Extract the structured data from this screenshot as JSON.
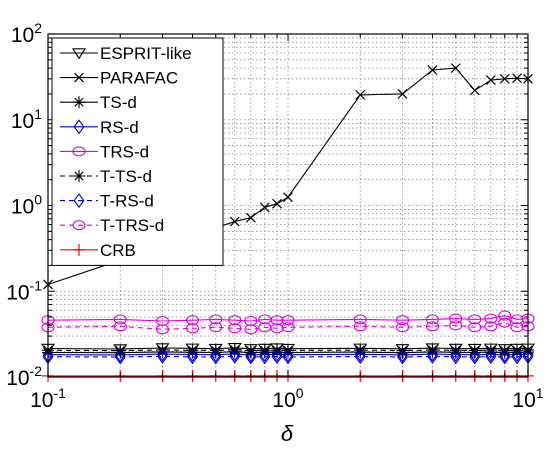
{
  "chart_data": {
    "type": "line",
    "x_scale": "log",
    "y_scale": "log",
    "xlim": [
      0.1,
      10
    ],
    "ylim": [
      0.01,
      100
    ],
    "xlabel": "δ",
    "ylabel": "",
    "grid": true,
    "legend_position": "top-left",
    "x_ticks": [
      {
        "value": 0.1,
        "base": "10",
        "exp": "-1"
      },
      {
        "value": 1,
        "base": "10",
        "exp": "0"
      },
      {
        "value": 10,
        "base": "10",
        "exp": "1"
      }
    ],
    "y_ticks": [
      {
        "value": 0.01,
        "base": "10",
        "exp": "-2"
      },
      {
        "value": 0.1,
        "base": "10",
        "exp": "-1"
      },
      {
        "value": 1,
        "base": "10",
        "exp": "0"
      },
      {
        "value": 10,
        "base": "10",
        "exp": "1"
      },
      {
        "value": 100,
        "base": "10",
        "exp": "2"
      }
    ],
    "x": [
      0.1,
      0.2,
      0.3,
      0.4,
      0.5,
      0.6,
      0.7,
      0.8,
      0.9,
      1,
      2,
      3,
      4,
      5,
      6,
      7,
      8,
      9,
      10
    ],
    "series": [
      {
        "name": "ESPRIT-like",
        "color": "#000000",
        "marker": "triangle-down",
        "dash": "",
        "values": [
          0.0215,
          0.0212,
          0.0218,
          0.0216,
          0.0214,
          0.0219,
          0.0213,
          0.0215,
          0.0217,
          0.0214,
          0.0216,
          0.0213,
          0.0217,
          0.0215,
          0.0214,
          0.0216,
          0.0213,
          0.0215,
          0.0216
        ]
      },
      {
        "name": "PARAFAC",
        "color": "#000000",
        "marker": "x",
        "dash": "",
        "values": [
          0.12,
          0.23,
          0.33,
          0.44,
          0.55,
          0.65,
          0.72,
          0.95,
          1.05,
          1.25,
          19.5,
          20.0,
          38.0,
          40.0,
          22.0,
          29.0,
          30.0,
          30.5,
          30.0
        ]
      },
      {
        "name": "TS-d",
        "color": "#000000",
        "marker": "star",
        "dash": "",
        "values": [
          0.0193,
          0.0192,
          0.0196,
          0.0194,
          0.0193,
          0.0197,
          0.0192,
          0.0194,
          0.0195,
          0.0193,
          0.0195,
          0.0192,
          0.0196,
          0.0194,
          0.0193,
          0.0195,
          0.0192,
          0.0194,
          0.0195
        ]
      },
      {
        "name": "RS-d",
        "color": "#0000cc",
        "marker": "diamond",
        "dash": "",
        "values": [
          0.0182,
          0.0181,
          0.0185,
          0.0183,
          0.0182,
          0.0186,
          0.0181,
          0.0183,
          0.0184,
          0.0182,
          0.0184,
          0.0181,
          0.0185,
          0.0183,
          0.0182,
          0.0184,
          0.0181,
          0.0183,
          0.0184
        ]
      },
      {
        "name": "TRS-d",
        "color": "#e000e0",
        "marker": "circle",
        "dash": "",
        "values": [
          0.046,
          0.047,
          0.045,
          0.046,
          0.047,
          0.046,
          0.045,
          0.047,
          0.046,
          0.046,
          0.047,
          0.046,
          0.047,
          0.048,
          0.047,
          0.048,
          0.052,
          0.047,
          0.048
        ]
      },
      {
        "name": "T-TS-d",
        "color": "#000000",
        "marker": "star",
        "dash": "5,4",
        "values": [
          0.0205,
          0.0203,
          0.0207,
          0.0205,
          0.0204,
          0.0208,
          0.0203,
          0.0205,
          0.0206,
          0.0204,
          0.0206,
          0.0203,
          0.0207,
          0.0205,
          0.0204,
          0.0206,
          0.0203,
          0.0205,
          0.0206
        ]
      },
      {
        "name": "T-RS-d",
        "color": "#0000cc",
        "marker": "diamond",
        "dash": "5,4",
        "values": [
          0.0172,
          0.0171,
          0.0174,
          0.0172,
          0.0171,
          0.0175,
          0.0171,
          0.0172,
          0.0173,
          0.0171,
          0.0173,
          0.0171,
          0.0174,
          0.0172,
          0.0171,
          0.0173,
          0.0171,
          0.0172,
          0.0173
        ]
      },
      {
        "name": "T-TRS-d",
        "color": "#e000e0",
        "marker": "circle",
        "dash": "5,4",
        "values": [
          0.038,
          0.039,
          0.036,
          0.037,
          0.038,
          0.037,
          0.036,
          0.038,
          0.037,
          0.038,
          0.039,
          0.038,
          0.039,
          0.04,
          0.038,
          0.039,
          0.043,
          0.038,
          0.039
        ]
      },
      {
        "name": "CRB",
        "color": "#ff0000",
        "marker": "plus",
        "dash": "",
        "values": [
          0.0103,
          0.0103,
          0.0103,
          0.0103,
          0.0103,
          0.0103,
          0.0103,
          0.0103,
          0.0103,
          0.0103,
          0.0103,
          0.0103,
          0.0103,
          0.0103,
          0.0103,
          0.0103,
          0.0103,
          0.0103,
          0.0103
        ]
      }
    ]
  }
}
